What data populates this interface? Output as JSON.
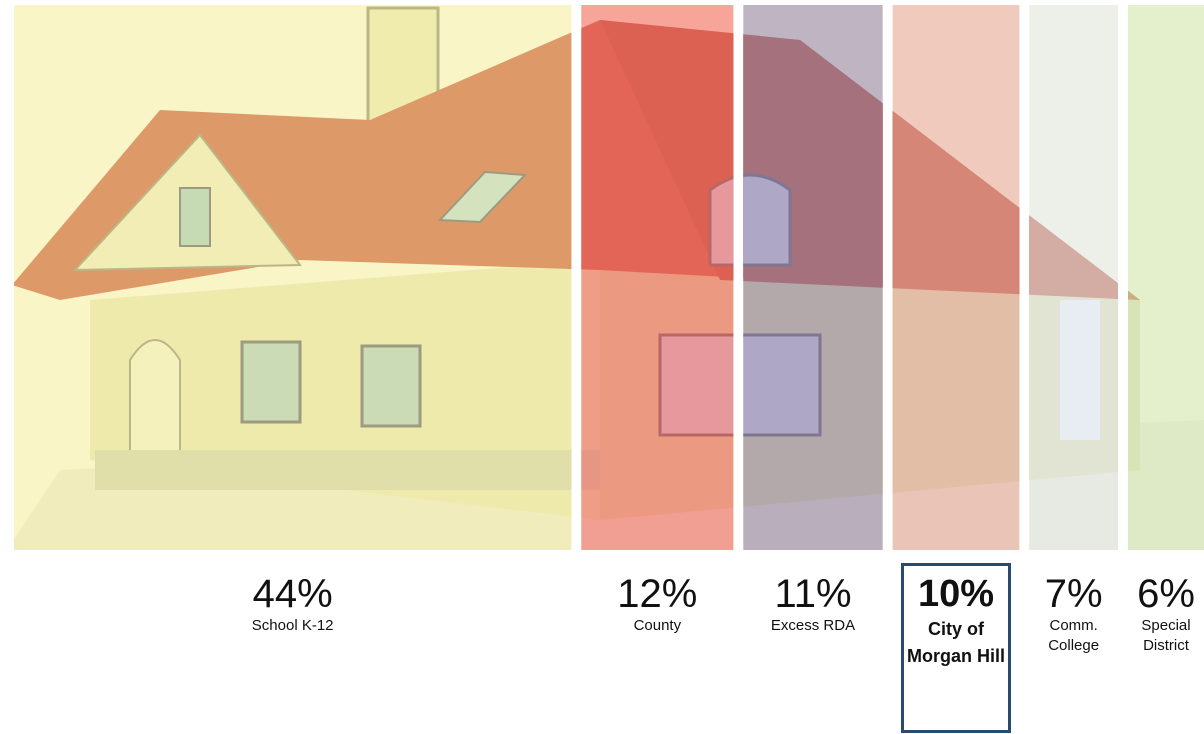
{
  "chart_data": {
    "type": "strip",
    "categories": [
      "School K-12",
      "County",
      "Excess RDA",
      "City of Morgan Hill",
      "Comm. College",
      "Special District"
    ],
    "values": [
      44,
      12,
      11,
      10,
      7,
      6
    ],
    "value_labels": [
      "44%",
      "12%",
      "11%",
      "10%",
      "7%",
      "6%"
    ],
    "colors": [
      "#f6f1b4",
      "#f47272",
      "#9a8cb6",
      "#e6aeae",
      "#e4ebf6",
      "#d5ebc6"
    ],
    "highlight": 3
  }
}
